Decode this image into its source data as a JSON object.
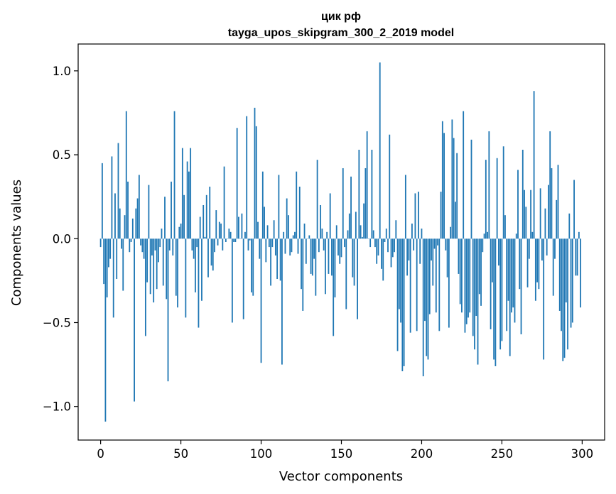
{
  "chart_data": {
    "type": "bar",
    "title_line1": "цик рф",
    "title_line2": "tayga_upos_skipgram_300_2_2019 model",
    "xlabel": "Vector components",
    "ylabel": "Components values",
    "xlim": [
      -14,
      314
    ],
    "ylim": [
      -1.2,
      1.16
    ],
    "grid": false,
    "bar_color": "#1f77b4",
    "x_ticks": [
      {
        "value": 0,
        "label": "0"
      },
      {
        "value": 50,
        "label": "50"
      },
      {
        "value": 100,
        "label": "100"
      },
      {
        "value": 150,
        "label": "150"
      },
      {
        "value": 200,
        "label": "200"
      },
      {
        "value": 250,
        "label": "250"
      },
      {
        "value": 300,
        "label": "300"
      }
    ],
    "y_ticks": [
      {
        "value": -1.0,
        "label": "−1.0"
      },
      {
        "value": -0.5,
        "label": "−0.5"
      },
      {
        "value": 0.0,
        "label": "0.0"
      },
      {
        "value": 0.5,
        "label": "0.5"
      },
      {
        "value": 1.0,
        "label": "1.0"
      }
    ],
    "values": [
      -0.05,
      0.45,
      -0.27,
      -1.09,
      -0.35,
      -0.17,
      -0.12,
      0.49,
      -0.47,
      0.27,
      -0.24,
      0.57,
      0.18,
      -0.06,
      -0.31,
      0.14,
      0.76,
      0.34,
      -0.08,
      -0.02,
      0.12,
      -0.97,
      0.18,
      0.24,
      0.38,
      -0.04,
      -0.08,
      -0.12,
      -0.58,
      -0.26,
      0.32,
      -0.33,
      -0.1,
      -0.38,
      -0.07,
      -0.3,
      -0.14,
      -0.05,
      0.06,
      -0.28,
      0.25,
      -0.36,
      -0.85,
      -0.07,
      0.34,
      -0.1,
      0.76,
      -0.34,
      -0.41,
      0.07,
      0.09,
      0.54,
      0.26,
      -0.47,
      0.46,
      0.4,
      0.54,
      -0.07,
      -0.12,
      -0.32,
      -0.05,
      -0.53,
      0.13,
      -0.37,
      0.2,
      0.01,
      0.26,
      -0.23,
      0.31,
      -0.16,
      -0.19,
      -0.08,
      0.17,
      -0.04,
      0.1,
      0.09,
      -0.07,
      0.43,
      -0.02,
      0.0,
      0.06,
      0.04,
      -0.5,
      -0.02,
      -0.02,
      0.66,
      0.13,
      0.0,
      0.15,
      -0.48,
      0.04,
      0.73,
      -0.07,
      -0.01,
      -0.32,
      -0.34,
      0.78,
      0.67,
      0.1,
      -0.12,
      -0.74,
      0.4,
      0.19,
      -0.14,
      0.08,
      -0.05,
      -0.28,
      -0.05,
      0.11,
      -0.1,
      -0.24,
      0.38,
      -0.25,
      -0.75,
      0.04,
      -0.09,
      0.24,
      0.14,
      -0.1,
      -0.08,
      0.02,
      0.04,
      0.4,
      -0.09,
      0.31,
      -0.3,
      -0.43,
      0.09,
      -0.15,
      0.0,
      0.02,
      -0.21,
      -0.22,
      -0.12,
      -0.34,
      0.47,
      -0.08,
      0.2,
      0.06,
      -0.07,
      -0.33,
      0.04,
      -0.21,
      0.27,
      -0.22,
      -0.58,
      -0.35,
      0.08,
      -0.1,
      -0.15,
      -0.11,
      0.42,
      -0.05,
      -0.42,
      0.05,
      0.15,
      0.37,
      -0.23,
      -0.28,
      0.16,
      -0.48,
      0.53,
      0.08,
      0.01,
      0.21,
      0.42,
      0.64,
      0.0,
      -0.05,
      0.53,
      0.05,
      -0.05,
      -0.15,
      -0.1,
      1.05,
      -0.18,
      -0.25,
      -0.02,
      0.06,
      -0.08,
      0.62,
      -0.17,
      -0.11,
      -0.08,
      0.11,
      -0.67,
      -0.42,
      -0.5,
      -0.79,
      -0.76,
      0.38,
      -0.22,
      -0.13,
      -0.56,
      0.09,
      -0.07,
      0.27,
      -0.55,
      0.28,
      -0.15,
      0.06,
      -0.82,
      -0.49,
      -0.7,
      -0.72,
      -0.45,
      -0.13,
      -0.28,
      -0.06,
      -0.44,
      -0.04,
      -0.55,
      0.28,
      0.7,
      0.63,
      -0.07,
      -0.23,
      -0.53,
      0.07,
      0.71,
      0.6,
      0.22,
      0.51,
      -0.21,
      -0.39,
      -0.44,
      0.76,
      -0.56,
      -0.51,
      -0.47,
      -0.44,
      0.59,
      -0.58,
      -0.66,
      -0.46,
      -0.75,
      -0.33,
      -0.4,
      -0.08,
      0.03,
      0.47,
      0.04,
      0.64,
      -0.54,
      -0.26,
      -0.72,
      -0.76,
      0.48,
      -0.16,
      -0.66,
      -0.61,
      0.55,
      0.14,
      -0.55,
      -0.37,
      -0.7,
      -0.44,
      -0.41,
      -0.5,
      0.03,
      0.41,
      -0.3,
      -0.57,
      0.53,
      0.29,
      0.19,
      -0.29,
      -0.12,
      0.29,
      0.04,
      0.88,
      -0.37,
      -0.26,
      -0.3,
      0.3,
      -0.13,
      -0.72,
      0.18,
      -0.1,
      0.32,
      0.64,
      0.42,
      -0.34,
      -0.12,
      0.23,
      0.44,
      -0.43,
      -0.55,
      -0.73,
      -0.71,
      -0.38,
      -0.66,
      0.15,
      -0.53,
      -0.5,
      0.35,
      -0.22,
      -0.22,
      0.04,
      -0.41
    ]
  }
}
